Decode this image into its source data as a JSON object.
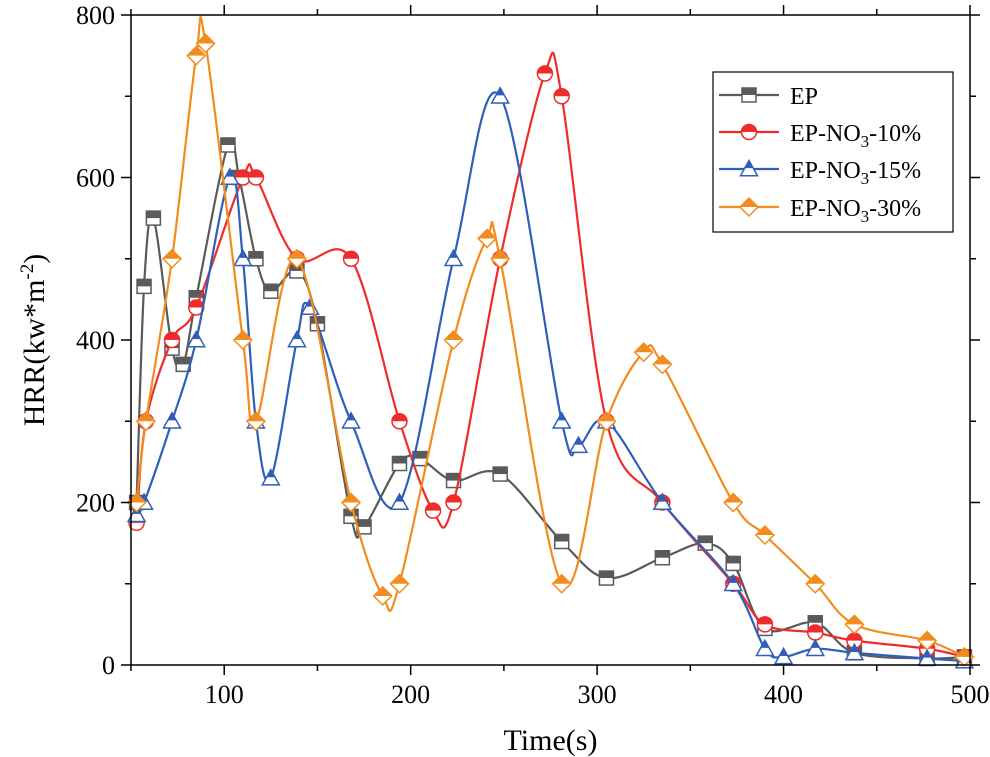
{
  "chart_data": {
    "type": "line",
    "title": "",
    "xlabel": "Time(s)",
    "ylabel_main": "HRR(kw*m",
    "ylabel_sup": "-2",
    "ylabel_end": ")",
    "xlim": [
      50,
      500
    ],
    "ylim": [
      0,
      800
    ],
    "xticks": [
      100,
      200,
      300,
      400,
      500
    ],
    "yticks": [
      0,
      200,
      400,
      600,
      800
    ],
    "legend_position": "top-right",
    "series": [
      {
        "name": "EP",
        "color": "#5a5a5a",
        "marker": "square",
        "x": [
          53,
          57,
          62,
          72,
          78,
          85,
          102,
          108,
          117,
          125,
          139,
          150,
          168,
          175,
          194,
          205,
          223,
          248,
          281,
          305,
          335,
          358,
          373,
          390,
          417,
          438,
          477,
          497
        ],
        "y": [
          200,
          466,
          550,
          390,
          370,
          452,
          640,
          600,
          500,
          460,
          485,
          420,
          183,
          170,
          248,
          254,
          227,
          235,
          152,
          107,
          132,
          150,
          125,
          45,
          52,
          15,
          8,
          10
        ]
      },
      {
        "name": "EP-NO3-10%",
        "name_main": "EP-NO",
        "name_sub": "3",
        "name_end": "-10%",
        "color": "#ef2b2b",
        "marker": "circle",
        "x": [
          53,
          58,
          72,
          85,
          110,
          117,
          139,
          168,
          194,
          212,
          223,
          248,
          272,
          281,
          305,
          335,
          373,
          390,
          417,
          438,
          477,
          497
        ],
        "y": [
          175,
          300,
          400,
          440,
          600,
          600,
          500,
          500,
          300,
          190,
          200,
          500,
          728,
          700,
          300,
          200,
          100,
          50,
          40,
          30,
          20,
          10
        ]
      },
      {
        "name": "EP-NO3-15%",
        "name_main": "EP-NO",
        "name_sub": "3",
        "name_end": "-15%",
        "color": "#2f5fb8",
        "marker": "triangle",
        "x": [
          53,
          57,
          72,
          85,
          103,
          110,
          117,
          125,
          139,
          146,
          168,
          194,
          223,
          248,
          281,
          290,
          305,
          335,
          373,
          390,
          400,
          417,
          438,
          477,
          497
        ],
        "y": [
          185,
          200,
          300,
          400,
          600,
          500,
          300,
          230,
          400,
          440,
          300,
          200,
          500,
          700,
          300,
          270,
          300,
          200,
          100,
          20,
          10,
          20,
          15,
          8,
          5
        ]
      },
      {
        "name": "EP-NO3-30%",
        "name_main": "EP-NO",
        "name_sub": "3",
        "name_end": "-30%",
        "color": "#f28c1e",
        "marker": "diamond",
        "x": [
          53,
          58,
          72,
          85,
          90,
          110,
          117,
          139,
          168,
          185,
          194,
          223,
          241,
          248,
          281,
          305,
          325,
          335,
          373,
          390,
          417,
          438,
          477,
          497
        ],
        "y": [
          200,
          300,
          500,
          750,
          765,
          400,
          300,
          500,
          200,
          85,
          100,
          400,
          525,
          500,
          100,
          300,
          385,
          370,
          200,
          160,
          100,
          50,
          30,
          10
        ]
      }
    ]
  }
}
